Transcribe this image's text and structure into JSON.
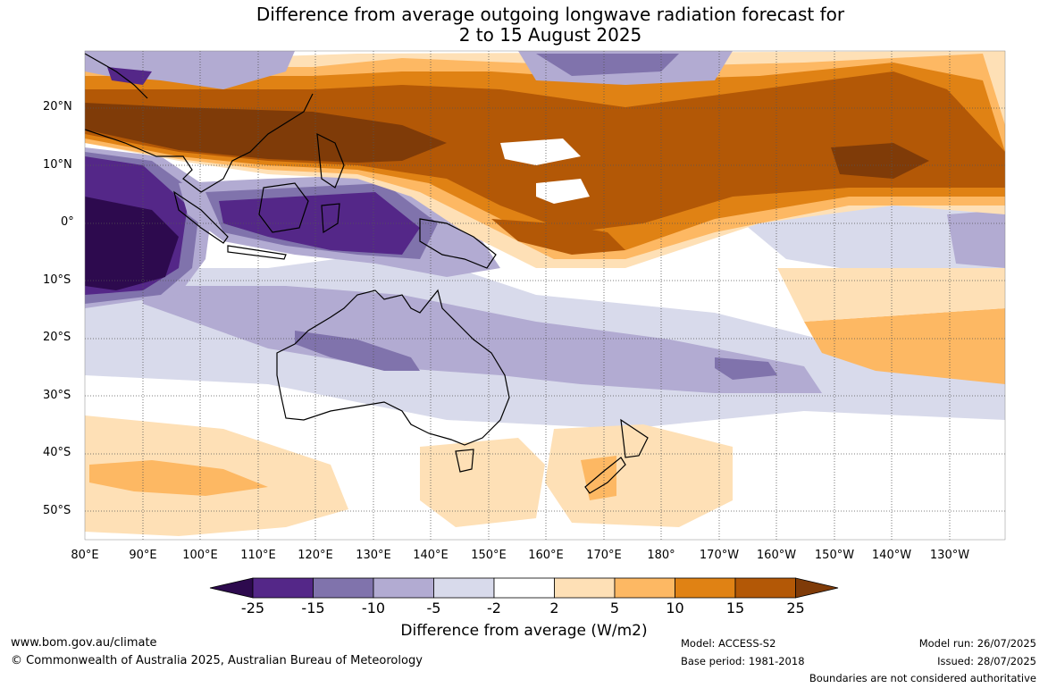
{
  "title": {
    "line1": "Difference from average outgoing longwave radiation forecast for",
    "line2": "2 to 15 August 2025"
  },
  "map": {
    "lat_labels": [
      "20°N",
      "10°N",
      "0°",
      "10°S",
      "20°S",
      "30°S",
      "40°S",
      "50°S"
    ],
    "lon_labels": [
      "80°E",
      "90°E",
      "100°E",
      "110°E",
      "120°E",
      "130°E",
      "140°E",
      "150°E",
      "160°E",
      "170°E",
      "180°",
      "170°W",
      "160°W",
      "150°W",
      "140°W",
      "130°W"
    ],
    "colors": {
      "lt_-25": "#2d0a4e",
      "-25_-15": "#542788",
      "-15_-10": "#8073ac",
      "-10_-5": "#b2abd2",
      "-5_-2": "#d8daeb",
      "-2_2": "#ffffff",
      "2_5": "#fee0b6",
      "5_10": "#fdb863",
      "10_15": "#e08214",
      "15_25": "#b35806",
      "gt_25": "#7f3b08"
    }
  },
  "legend": {
    "ticks": [
      "-25",
      "-15",
      "-10",
      "-5",
      "-2",
      "2",
      "5",
      "10",
      "15",
      "25"
    ],
    "label": "Difference from average (W/m2)"
  },
  "footer": {
    "website": "www.bom.gov.au/climate",
    "copyright": "© Commonwealth of Australia 2025, Australian Bureau of Meteorology",
    "model": "Model: ACCESS-S2",
    "base_period": "Base period: 1981-2018",
    "model_run": "Model run: 26/07/2025",
    "issued": "Issued: 28/07/2025",
    "disclaimer": "Boundaries are not considered authoritative"
  }
}
